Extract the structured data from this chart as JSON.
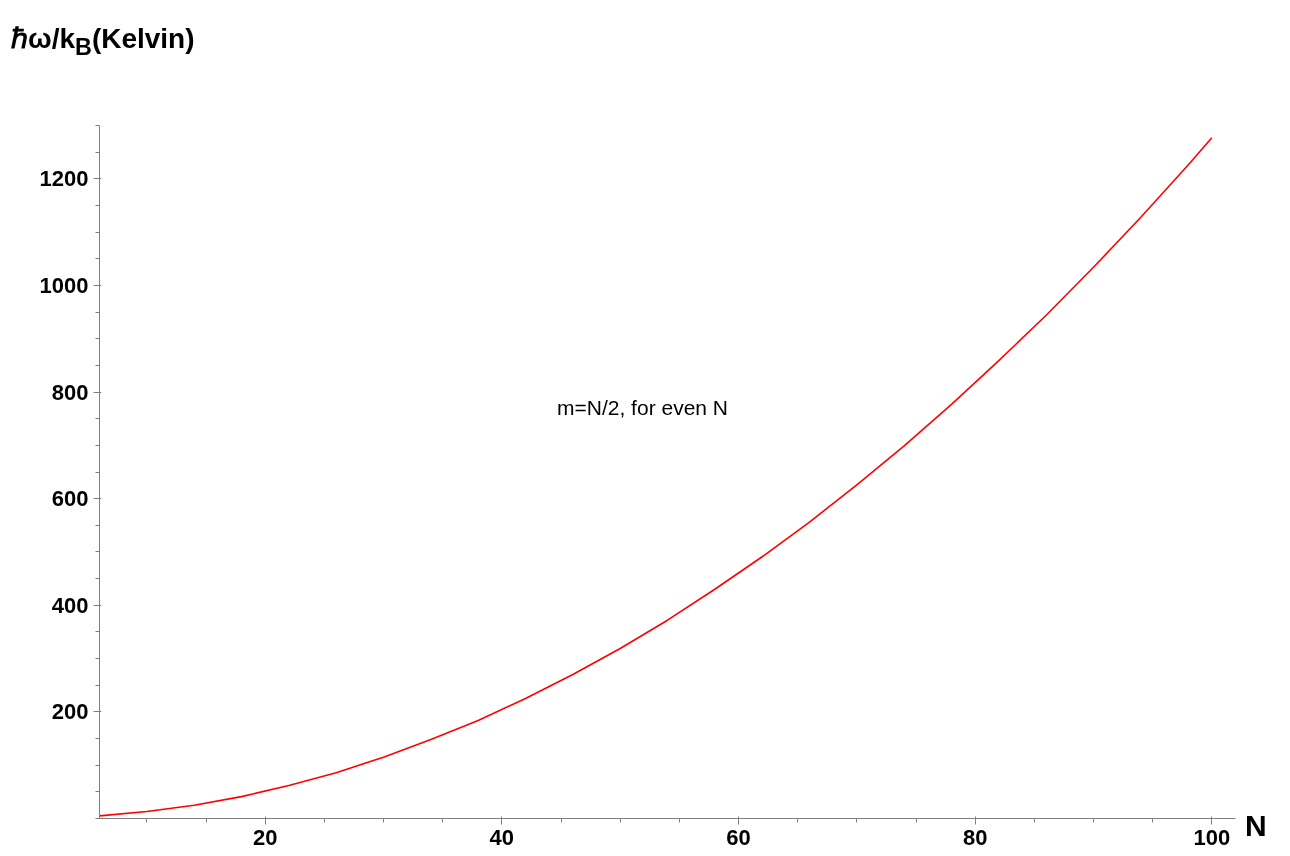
{
  "chart_data": {
    "type": "line",
    "xlabel": "N",
    "ylabel": "ℏω/k$_{B}$(Kelvin)",
    "x": [
      6,
      10,
      14,
      18,
      22,
      26,
      30,
      34,
      38,
      42,
      46,
      50,
      54,
      58,
      62,
      66,
      70,
      74,
      78,
      82,
      86,
      90,
      94,
      98,
      100
    ],
    "series": [
      {
        "color": "#ff0000",
        "values": [
          5,
          13,
          25,
          41,
          62,
          86,
          115,
          148,
          184,
          225,
          270,
          319,
          372,
          430,
          491,
          556,
          626,
          699,
          777,
          859,
          944,
          1034,
          1128,
          1226,
          1277
        ]
      }
    ],
    "xlim": [
      6,
      102
    ],
    "xticks": [
      20,
      40,
      60,
      80,
      100
    ],
    "ylim": [
      0,
      1300
    ],
    "yticks": [
      200,
      400,
      600,
      800,
      1000,
      1200
    ],
    "annotations": [
      "m=N/2, for even N"
    ],
    "grid": false,
    "marker": "none",
    "line_style": "solid"
  }
}
